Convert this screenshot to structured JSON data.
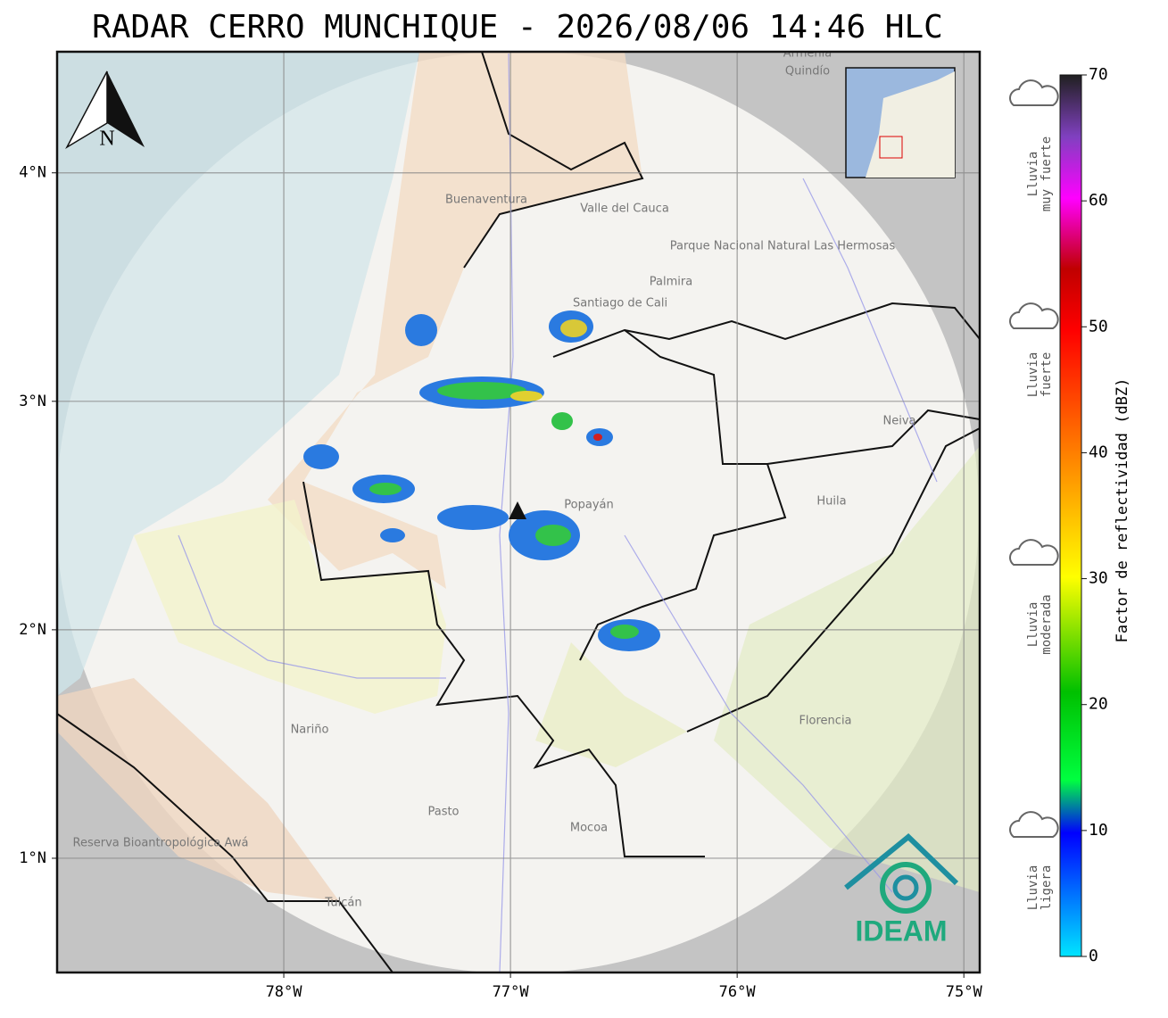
{
  "title": "RADAR CERRO MUNCHIQUE - 2026/08/06 14:46 HLC",
  "map": {
    "xlim": [
      -79,
      -74.93
    ],
    "ylim": [
      0.5,
      4.53
    ],
    "xticks": [
      {
        "value": -78,
        "label": "78°W"
      },
      {
        "value": -77,
        "label": "77°W"
      },
      {
        "value": -76,
        "label": "76°W"
      },
      {
        "value": -75,
        "label": "75°W"
      }
    ],
    "yticks": [
      {
        "value": 1,
        "label": "1°N"
      },
      {
        "value": 2,
        "label": "2°N"
      },
      {
        "value": 3,
        "label": "3°N"
      },
      {
        "value": 4,
        "label": "4°N"
      }
    ],
    "north": "N",
    "logo": "IDEAM",
    "places": [
      "Santiago de Cali",
      "Palmira",
      "Popayán",
      "Pasto",
      "Mocoa",
      "Florencia",
      "Neiva",
      "Huila",
      "Nariño",
      "Valle del Cauca",
      "Buenaventura",
      "Tulcán",
      "Parque Nacional Natural Las Hermosas",
      "Reserva Bioantropológica Awá",
      "Armenia",
      "Quindío"
    ]
  },
  "colorbar": {
    "label": "Factor de reflectividad (dBZ)",
    "clim": [
      0,
      70
    ],
    "ticks": [
      0,
      10,
      20,
      30,
      40,
      50,
      60,
      70
    ]
  },
  "legend": [
    {
      "line1": "Lluvia",
      "line2": "muy fuerte"
    },
    {
      "line1": "Lluvia",
      "line2": "fuerte"
    },
    {
      "line1": "Lluvia",
      "line2": "moderada"
    },
    {
      "line1": "Lluvia",
      "line2": "ligera"
    }
  ]
}
